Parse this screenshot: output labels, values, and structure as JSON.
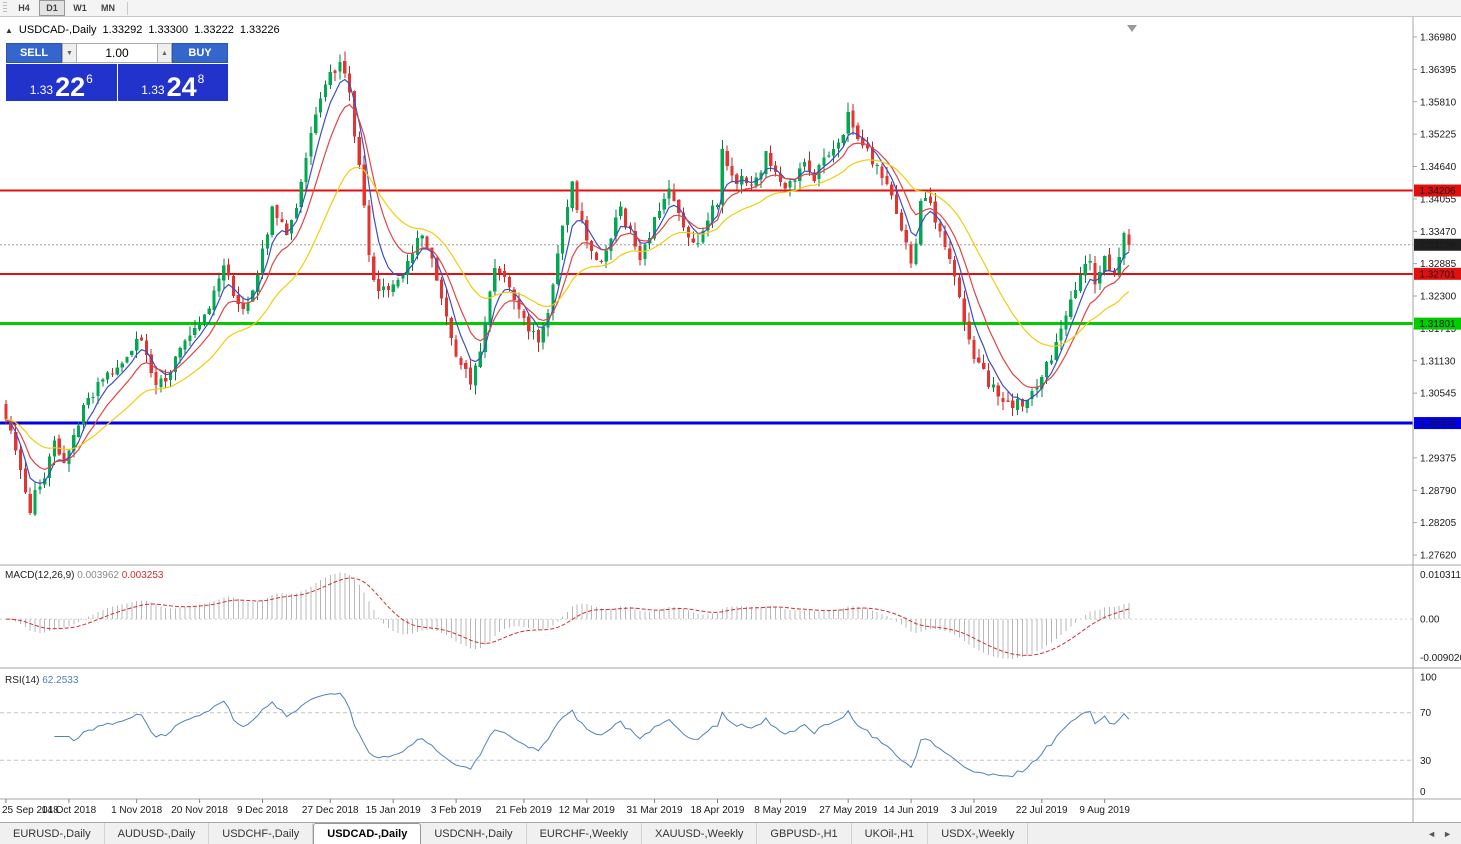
{
  "toolbar": {
    "timeframes": [
      {
        "label": "H4",
        "active": false
      },
      {
        "label": "D1",
        "active": true
      },
      {
        "label": "W1",
        "active": false
      },
      {
        "label": "MN",
        "active": false
      }
    ]
  },
  "chart_header": {
    "symbol": "USDCAD-,Daily",
    "open": "1.33292",
    "high": "1.33300",
    "low": "1.33222",
    "close": "1.33226"
  },
  "trade_panel": {
    "sell_label": "SELL",
    "buy_label": "BUY",
    "volume": "1.00",
    "sell_price": {
      "big": "1.33",
      "pips": "22",
      "pipette": "6"
    },
    "buy_price": {
      "big": "1.33",
      "pips": "24",
      "pipette": "8"
    }
  },
  "icons": {
    "collapse": "▲",
    "spin_up": "▲",
    "spin_down": "▼",
    "scroll_left": "◄",
    "scroll_right": "►"
  },
  "price_axis": {
    "current_label": "1.33226",
    "ticks": [
      "1.36980",
      "1.36395",
      "1.35810",
      "1.35225",
      "1.34640",
      "1.34055",
      "1.33470",
      "1.32885",
      "1.32300",
      "1.31715",
      "1.31130",
      "1.30545",
      "1.29960",
      "1.29375",
      "1.28790",
      "1.28205",
      "1.27620"
    ]
  },
  "levels": [
    {
      "price": 1.34206,
      "label": "1.34206",
      "color": "#E01010",
      "width": 2
    },
    {
      "price": 1.32701,
      "label": "1.32701",
      "color": "#E01010",
      "width": 2
    },
    {
      "price": 1.31801,
      "label": "1.31801",
      "color": "#00CC00",
      "width": 3
    },
    {
      "price": 1.30004,
      "label": "1.30004",
      "color": "#0000E8",
      "width": 3
    }
  ],
  "indicators": {
    "macd": {
      "name": "MACD(12,26,9)",
      "main_value": "0.003962",
      "signal_value": "0.003253",
      "axis_max": "0.010311",
      "axis_zero": "0.00",
      "axis_min": "-0.009020"
    },
    "rsi": {
      "name": "RSI(14)",
      "value": "62.2533",
      "axis_labels": [
        "100",
        "70",
        "30",
        "0"
      ],
      "upper_level": 70,
      "lower_level": 30
    }
  },
  "time_axis": {
    "labels": [
      "25 Sep 2018",
      "14 Oct 2018",
      "1 Nov 2018",
      "20 Nov 2018",
      "9 Dec 2018",
      "27 Dec 2018",
      "15 Jan 2019",
      "3 Feb 2019",
      "21 Feb 2019",
      "12 Mar 2019",
      "31 Mar 2019",
      "18 Apr 2019",
      "8 May 2019",
      "27 May 2019",
      "14 Jun 2019",
      "3 Jul 2019",
      "22 Jul 2019",
      "9 Aug 2019"
    ]
  },
  "tabs": [
    {
      "label": "EURUSD-,Daily",
      "active": false
    },
    {
      "label": "AUDUSD-,Daily",
      "active": false
    },
    {
      "label": "USDCHF-,Daily",
      "active": false
    },
    {
      "label": "USDCAD-,Daily",
      "active": true
    },
    {
      "label": "USDCNH-,Daily",
      "active": false
    },
    {
      "label": "EURCHF-,Weekly",
      "active": false
    },
    {
      "label": "XAUUSD-,Weekly",
      "active": false
    },
    {
      "label": "GBPUSD-,H1",
      "active": false
    },
    {
      "label": "UKOil-,H1",
      "active": false
    },
    {
      "label": "USDX-,Weekly",
      "active": false
    }
  ],
  "colors": {
    "candle_up": "#00A94F",
    "candle_down": "#E33434",
    "wick_up": "#00813C",
    "wick_down": "#C22525",
    "macd_hist": "#B8B8B8",
    "macd_signal": "#D03030",
    "rsi_line": "#4F81BD",
    "current_price_line": "#9C9C9C",
    "current_label_bg": "#1F1F1F",
    "trade_button_bg": "#3566CC",
    "trade_price_bg": "#2233CC"
  },
  "chart_data": {
    "type": "candlestick",
    "symbol": "USDCAD-",
    "timeframe": "Daily",
    "bars": 233,
    "seed": 20190816,
    "ylim": [
      1.2762,
      1.3698
    ],
    "last_close": 1.33226,
    "price_anchors": [
      [
        0,
        1.3015
      ],
      [
        2,
        1.2958
      ],
      [
        4,
        1.2868
      ],
      [
        5,
        1.2838
      ],
      [
        6,
        1.2872
      ],
      [
        8,
        1.2905
      ],
      [
        10,
        1.2968
      ],
      [
        12,
        1.2938
      ],
      [
        14,
        1.2982
      ],
      [
        16,
        1.303
      ],
      [
        18,
        1.3058
      ],
      [
        20,
        1.3078
      ],
      [
        23,
        1.3108
      ],
      [
        26,
        1.3138
      ],
      [
        28,
        1.315
      ],
      [
        30,
        1.3092
      ],
      [
        31,
        1.3062
      ],
      [
        33,
        1.3082
      ],
      [
        35,
        1.3118
      ],
      [
        38,
        1.3152
      ],
      [
        40,
        1.3178
      ],
      [
        42,
        1.3205
      ],
      [
        44,
        1.3262
      ],
      [
        45,
        1.3295
      ],
      [
        47,
        1.3228
      ],
      [
        49,
        1.3198
      ],
      [
        51,
        1.3248
      ],
      [
        53,
        1.331
      ],
      [
        55,
        1.3382
      ],
      [
        57,
        1.3358
      ],
      [
        58,
        1.3332
      ],
      [
        60,
        1.3398
      ],
      [
        62,
        1.3488
      ],
      [
        64,
        1.3558
      ],
      [
        66,
        1.3612
      ],
      [
        68,
        1.364
      ],
      [
        69,
        1.3648
      ],
      [
        70,
        1.3622
      ],
      [
        71,
        1.3592
      ],
      [
        72,
        1.3528
      ],
      [
        73,
        1.3468
      ],
      [
        74,
        1.3388
      ],
      [
        75,
        1.3312
      ],
      [
        76,
        1.3258
      ],
      [
        78,
        1.324
      ],
      [
        80,
        1.3252
      ],
      [
        82,
        1.3268
      ],
      [
        84,
        1.3312
      ],
      [
        86,
        1.3338
      ],
      [
        88,
        1.3295
      ],
      [
        90,
        1.3228
      ],
      [
        92,
        1.3152
      ],
      [
        94,
        1.3098
      ],
      [
        96,
        1.3078
      ],
      [
        98,
        1.3128
      ],
      [
        100,
        1.3238
      ],
      [
        101,
        1.3288
      ],
      [
        103,
        1.3268
      ],
      [
        105,
        1.3232
      ],
      [
        107,
        1.3192
      ],
      [
        109,
        1.3158
      ],
      [
        110,
        1.3148
      ],
      [
        112,
        1.3198
      ],
      [
        114,
        1.3302
      ],
      [
        116,
        1.3398
      ],
      [
        117,
        1.3428
      ],
      [
        119,
        1.3358
      ],
      [
        121,
        1.3302
      ],
      [
        123,
        1.3292
      ],
      [
        125,
        1.3342
      ],
      [
        127,
        1.3385
      ],
      [
        129,
        1.3342
      ],
      [
        131,
        1.3305
      ],
      [
        133,
        1.3345
      ],
      [
        135,
        1.3392
      ],
      [
        137,
        1.3422
      ],
      [
        139,
        1.3382
      ],
      [
        141,
        1.3342
      ],
      [
        143,
        1.3332
      ],
      [
        145,
        1.3372
      ],
      [
        147,
        1.3398
      ],
      [
        148,
        1.3502
      ],
      [
        149,
        1.3468
      ],
      [
        151,
        1.3442
      ],
      [
        153,
        1.3432
      ],
      [
        155,
        1.3442
      ],
      [
        157,
        1.3482
      ],
      [
        159,
        1.3452
      ],
      [
        161,
        1.3422
      ],
      [
        163,
        1.3448
      ],
      [
        165,
        1.3468
      ],
      [
        167,
        1.3442
      ],
      [
        169,
        1.3472
      ],
      [
        171,
        1.3492
      ],
      [
        173,
        1.3512
      ],
      [
        174,
        1.3558
      ],
      [
        175,
        1.3532
      ],
      [
        177,
        1.3508
      ],
      [
        179,
        1.3478
      ],
      [
        181,
        1.3442
      ],
      [
        183,
        1.3402
      ],
      [
        185,
        1.3342
      ],
      [
        187,
        1.3295
      ],
      [
        188,
        1.3328
      ],
      [
        189,
        1.3398
      ],
      [
        190,
        1.3408
      ],
      [
        192,
        1.3372
      ],
      [
        194,
        1.3318
      ],
      [
        196,
        1.3262
      ],
      [
        198,
        1.3178
      ],
      [
        200,
        1.3122
      ],
      [
        202,
        1.3088
      ],
      [
        204,
        1.3062
      ],
      [
        206,
        1.3048
      ],
      [
        208,
        1.3032
      ],
      [
        210,
        1.3038
      ],
      [
        212,
        1.3058
      ],
      [
        214,
        1.3088
      ],
      [
        216,
        1.3122
      ],
      [
        218,
        1.3168
      ],
      [
        220,
        1.3228
      ],
      [
        222,
        1.3268
      ],
      [
        224,
        1.3292
      ],
      [
        225,
        1.3252
      ],
      [
        226,
        1.3278
      ],
      [
        227,
        1.3308
      ],
      [
        228,
        1.3282
      ],
      [
        229,
        1.3262
      ],
      [
        230,
        1.3298
      ],
      [
        231,
        1.3338
      ],
      [
        232,
        1.33226
      ]
    ],
    "moving_averages": [
      {
        "period": 5,
        "color": "#3A4FC4"
      },
      {
        "period": 10,
        "color": "#E04444"
      },
      {
        "period": 25,
        "color": "#F2CC0C"
      }
    ],
    "macd": {
      "fast": 12,
      "slow": 26,
      "signal": 9
    },
    "rsi_period": 14
  }
}
